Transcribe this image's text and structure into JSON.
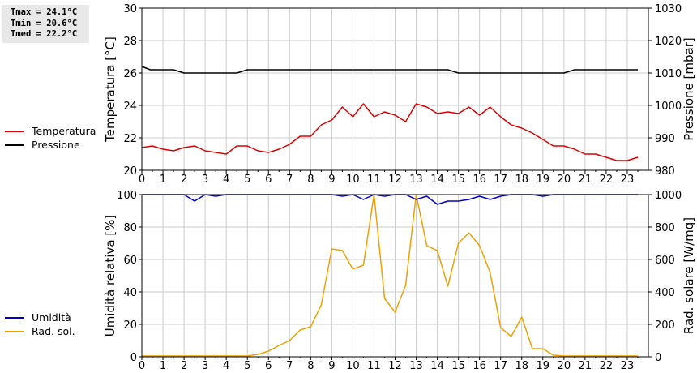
{
  "stats": {
    "tmax": "Tmax = 24.1°C",
    "tmin": "Tmin = 20.6°C",
    "tmed": "Tmed = 22.2°C"
  },
  "colors": {
    "temperature": "#dd0000",
    "pressure": "#000000",
    "humidity": "#0000cc",
    "radiation": "#f0a000",
    "grid": "#cccccc"
  },
  "chart_data": [
    {
      "type": "line",
      "xlim": [
        0,
        24
      ],
      "x_ticks": [
        0,
        1,
        2,
        3,
        4,
        5,
        6,
        7,
        8,
        9,
        10,
        11,
        12,
        13,
        14,
        15,
        16,
        17,
        18,
        19,
        20,
        21,
        22,
        23
      ],
      "ylabel": "Temperatura [°C]",
      "ylim": [
        20,
        30
      ],
      "y_ticks": [
        20,
        22,
        24,
        26,
        28,
        30
      ],
      "y2label": "Pressione [mbar]",
      "y2lim": [
        980,
        1030
      ],
      "y2_ticks": [
        980,
        990,
        1000,
        1010,
        1020,
        1030
      ],
      "grid": true,
      "legend_position": "left",
      "series": [
        {
          "name": "Temperatura",
          "axis": "left",
          "color": "#dd0000",
          "x": [
            0,
            0.5,
            1,
            1.5,
            2,
            2.5,
            3,
            3.5,
            4,
            4.5,
            5,
            5.5,
            6,
            6.5,
            7,
            7.5,
            8,
            8.5,
            9,
            9.5,
            10,
            10.5,
            11,
            11.5,
            12,
            12.5,
            13,
            13.5,
            14,
            14.5,
            15,
            15.5,
            16,
            16.5,
            17,
            17.5,
            18,
            18.5,
            19,
            19.5,
            20,
            20.5,
            21,
            21.5,
            22,
            22.5,
            23,
            23.5
          ],
          "values": [
            21.4,
            21.5,
            21.3,
            21.2,
            21.4,
            21.5,
            21.2,
            21.1,
            21.0,
            21.5,
            21.5,
            21.2,
            21.1,
            21.3,
            21.6,
            22.1,
            22.1,
            22.8,
            23.1,
            23.9,
            23.3,
            24.1,
            23.3,
            23.6,
            23.4,
            23.0,
            24.1,
            23.9,
            23.5,
            23.6,
            23.5,
            23.9,
            23.4,
            23.9,
            23.3,
            22.8,
            22.6,
            22.3,
            21.9,
            21.5,
            21.5,
            21.3,
            21.0,
            21.0,
            20.8,
            20.6,
            20.6,
            20.8
          ]
        },
        {
          "name": "Pressione",
          "axis": "right",
          "color": "#000000",
          "x": [
            0,
            0.4,
            1,
            1.5,
            2,
            2.5,
            3,
            3.5,
            4,
            4.5,
            5,
            5.5,
            6,
            6.5,
            7,
            7.5,
            8,
            8.5,
            9,
            9.5,
            10,
            10.5,
            11,
            11.5,
            12,
            12.5,
            13,
            13.5,
            14,
            14.5,
            15,
            15.5,
            16,
            16.5,
            17,
            17.5,
            18,
            18.5,
            19,
            19.5,
            20,
            20.5,
            21,
            21.5,
            22,
            22.5,
            23,
            23.5
          ],
          "values": [
            1012,
            1011,
            1011,
            1011,
            1010,
            1010,
            1010,
            1010,
            1010,
            1010,
            1011,
            1011,
            1011,
            1011,
            1011,
            1011,
            1011,
            1011,
            1011,
            1011,
            1011,
            1011,
            1011,
            1011,
            1011,
            1011,
            1011,
            1011,
            1011,
            1011,
            1010,
            1010,
            1010,
            1010,
            1010,
            1010,
            1010,
            1010,
            1010,
            1010,
            1010,
            1011,
            1011,
            1011,
            1011,
            1011,
            1011,
            1011
          ]
        }
      ]
    },
    {
      "type": "line",
      "xlim": [
        0,
        24
      ],
      "x_ticks": [
        0,
        1,
        2,
        3,
        4,
        5,
        6,
        7,
        8,
        9,
        10,
        11,
        12,
        13,
        14,
        15,
        16,
        17,
        18,
        19,
        20,
        21,
        22,
        23
      ],
      "ylabel": "Umidità relativa [%]",
      "ylim": [
        0,
        100
      ],
      "y_ticks": [
        0,
        20,
        40,
        60,
        80,
        100
      ],
      "y2label": "Rad. solare [W/mq]",
      "y2lim": [
        0,
        1000
      ],
      "y2_ticks": [
        0,
        200,
        400,
        600,
        800,
        1000
      ],
      "grid": true,
      "legend_position": "left",
      "series": [
        {
          "name": "Umidità",
          "axis": "left",
          "color": "#0000cc",
          "x": [
            0,
            0.5,
            1,
            1.5,
            2,
            2.5,
            3,
            3.5,
            4,
            4.5,
            5,
            5.5,
            6,
            6.5,
            7,
            7.5,
            8,
            8.5,
            9,
            9.5,
            10,
            10.5,
            11,
            11.5,
            12,
            12.5,
            13,
            13.5,
            14,
            14.5,
            15,
            15.5,
            16,
            16.5,
            17,
            17.5,
            18,
            18.5,
            19,
            19.5,
            20,
            20.5,
            21,
            21.5,
            22,
            22.5,
            23,
            23.5
          ],
          "values": [
            100,
            100,
            100,
            100,
            100,
            96,
            100,
            99,
            100,
            100,
            100,
            100,
            100,
            100,
            100,
            100,
            100,
            100,
            100,
            99,
            100,
            97,
            100,
            99,
            100,
            100,
            97,
            99,
            94,
            96,
            96,
            97,
            99,
            97,
            99,
            100,
            100,
            100,
            99,
            100,
            100,
            100,
            100,
            100,
            100,
            100,
            100,
            100
          ]
        },
        {
          "name": "Rad. sol.",
          "axis": "right",
          "color": "#f0a000",
          "x": [
            0,
            0.5,
            1,
            1.5,
            2,
            2.5,
            3,
            3.5,
            4,
            4.5,
            5,
            5.5,
            6,
            6.5,
            7,
            7.5,
            8,
            8.5,
            9,
            9.5,
            10,
            10.5,
            11,
            11.5,
            12,
            12.5,
            13,
            13.5,
            14,
            14.5,
            15,
            15.5,
            16,
            16.5,
            17,
            17.5,
            18,
            18.5,
            19,
            19.5,
            20,
            20.5,
            21,
            21.5,
            22,
            22.5,
            23,
            23.5
          ],
          "values": [
            5,
            5,
            5,
            5,
            5,
            5,
            5,
            5,
            5,
            5,
            5,
            15,
            35,
            70,
            100,
            165,
            185,
            320,
            665,
            655,
            540,
            565,
            1000,
            360,
            275,
            440,
            1000,
            685,
            655,
            435,
            700,
            765,
            685,
            520,
            180,
            125,
            245,
            50,
            50,
            10,
            5,
            5,
            5,
            5,
            5,
            5,
            5,
            5
          ]
        }
      ]
    }
  ]
}
